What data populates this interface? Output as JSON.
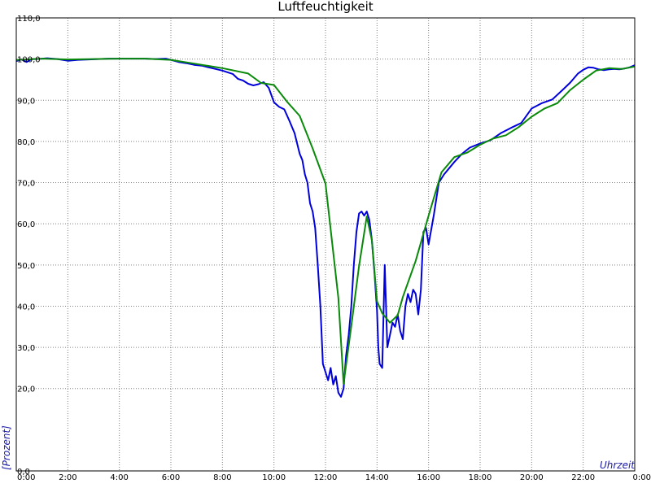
{
  "chart_data": {
    "type": "line",
    "title": "Luftfeuchtigkeit",
    "xlabel": "Uhrzeit",
    "ylabel": "[Prozent]",
    "xlim": [
      0,
      24
    ],
    "ylim": [
      0,
      110
    ],
    "grid": true,
    "x_ticks": [
      {
        "v": 0,
        "label": "0:00"
      },
      {
        "v": 2,
        "label": "2:00"
      },
      {
        "v": 4,
        "label": "4:00"
      },
      {
        "v": 6,
        "label": "6:00"
      },
      {
        "v": 8,
        "label": "8:00"
      },
      {
        "v": 10,
        "label": "10:00"
      },
      {
        "v": 12,
        "label": "12:00"
      },
      {
        "v": 14,
        "label": "14:00"
      },
      {
        "v": 16,
        "label": "16:00"
      },
      {
        "v": 18,
        "label": "18:00"
      },
      {
        "v": 20,
        "label": "20:00"
      },
      {
        "v": 22,
        "label": "22:00"
      },
      {
        "v": 24,
        "label": "0:00"
      }
    ],
    "y_ticks": [
      {
        "v": 0,
        "label": "0,0"
      },
      {
        "v": 20,
        "label": "20,0"
      },
      {
        "v": 30,
        "label": "30,0"
      },
      {
        "v": 40,
        "label": "40,0"
      },
      {
        "v": 50,
        "label": "50,0"
      },
      {
        "v": 60,
        "label": "60,0"
      },
      {
        "v": 70,
        "label": "70,0"
      },
      {
        "v": 80,
        "label": "80,0"
      },
      {
        "v": 90,
        "label": "90,0"
      },
      {
        "v": 100,
        "label": "100,0"
      },
      {
        "v": 110,
        "label": "110,0"
      }
    ],
    "series": [
      {
        "color": "#0000dd",
        "x": [
          0,
          0.2,
          0.4,
          0.6,
          0.8,
          1.2,
          1.6,
          2.0,
          2.4,
          2.8,
          3.2,
          3.6,
          4.0,
          4.5,
          5.0,
          5.4,
          5.8,
          6.0,
          6.3,
          6.6,
          6.9,
          7.2,
          7.6,
          8.0,
          8.4,
          8.6,
          8.8,
          9.0,
          9.2,
          9.4,
          9.6,
          9.8,
          10.0,
          10.2,
          10.4,
          10.6,
          10.8,
          11.0,
          11.1,
          11.2,
          11.3,
          11.4,
          11.5,
          11.6,
          11.7,
          11.8,
          11.9,
          12.0,
          12.1,
          12.2,
          12.3,
          12.4,
          12.5,
          12.6,
          12.7,
          12.8,
          12.9,
          13.0,
          13.1,
          13.2,
          13.3,
          13.4,
          13.5,
          13.6,
          13.7,
          13.8,
          13.9,
          14.0,
          14.05,
          14.1,
          14.2,
          14.3,
          14.35,
          14.4,
          14.5,
          14.6,
          14.7,
          14.8,
          14.9,
          15.0,
          15.1,
          15.2,
          15.3,
          15.4,
          15.5,
          15.6,
          15.7,
          15.8,
          15.9,
          16.0,
          16.2,
          16.4,
          16.6,
          16.8,
          17.0,
          17.3,
          17.6,
          18.0,
          18.4,
          18.8,
          19.2,
          19.6,
          20.0,
          20.4,
          20.8,
          21.2,
          21.5,
          21.8,
          22.0,
          22.2,
          22.4,
          22.6,
          22.8,
          23.0,
          23.2,
          23.4,
          23.6,
          23.8,
          24.0
        ],
        "y": [
          99.5,
          99.9,
          99.3,
          100.0,
          100.0,
          100.2,
          100.0,
          99.6,
          99.8,
          99.9,
          100.0,
          100.1,
          100.1,
          100.1,
          100.1,
          100.0,
          100.1,
          99.8,
          99.3,
          99.0,
          98.6,
          98.4,
          97.8,
          97.2,
          96.4,
          95.2,
          94.8,
          94.0,
          93.6,
          93.9,
          94.4,
          93.0,
          89.5,
          88.4,
          87.8,
          85.0,
          82.0,
          77.0,
          75.5,
          72.0,
          70.0,
          65.0,
          63.0,
          59.0,
          50.0,
          40.0,
          26.0,
          24.0,
          22.0,
          25.0,
          21.0,
          23.0,
          19.0,
          18.0,
          20.0,
          28.0,
          33.0,
          40.0,
          50.0,
          58.0,
          62.5,
          63.0,
          62.0,
          63.0,
          61.0,
          56.0,
          48.0,
          39.0,
          30.0,
          26.0,
          25.0,
          50.0,
          40.0,
          30.0,
          33.0,
          36.0,
          35.0,
          38.0,
          34.0,
          32.0,
          40.0,
          43.0,
          41.0,
          44.0,
          43.0,
          38.0,
          44.0,
          58.0,
          59.0,
          55.0,
          62.0,
          70.0,
          72.0,
          73.5,
          75.0,
          77.0,
          78.5,
          79.5,
          80.3,
          82.0,
          83.3,
          84.5,
          88.0,
          89.3,
          90.2,
          92.5,
          94.3,
          96.5,
          97.4,
          98.0,
          97.9,
          97.5,
          97.3,
          97.5,
          97.6,
          97.5,
          97.7,
          98.0,
          98.5
        ]
      },
      {
        "color": "#0a8a0a",
        "x": [
          0,
          1,
          2,
          3,
          4,
          5,
          6,
          7,
          8,
          9,
          9.5,
          10,
          10.5,
          11,
          11.5,
          12,
          12.5,
          12.7,
          13,
          13.3,
          13.6,
          13.8,
          14.0,
          14.2,
          14.5,
          14.8,
          15.0,
          15.5,
          16.0,
          16.5,
          17.0,
          17.5,
          18.0,
          18.5,
          19.0,
          19.5,
          20.0,
          20.5,
          21.0,
          21.5,
          22.0,
          22.5,
          23.0,
          23.5,
          24.0
        ],
        "y": [
          99.8,
          100.1,
          99.9,
          100.0,
          100.1,
          100.1,
          99.8,
          98.8,
          97.8,
          96.5,
          94.2,
          93.7,
          89.7,
          86.2,
          78.3,
          69.8,
          42.0,
          21.2,
          35.2,
          49.7,
          61.8,
          56.0,
          41.2,
          38.3,
          36.0,
          37.8,
          42.2,
          51.0,
          62.0,
          72.5,
          76.2,
          77.3,
          79.2,
          80.7,
          81.5,
          83.5,
          86.0,
          88.0,
          89.3,
          92.5,
          95.0,
          97.2,
          97.8,
          97.6,
          98.2
        ]
      }
    ]
  }
}
